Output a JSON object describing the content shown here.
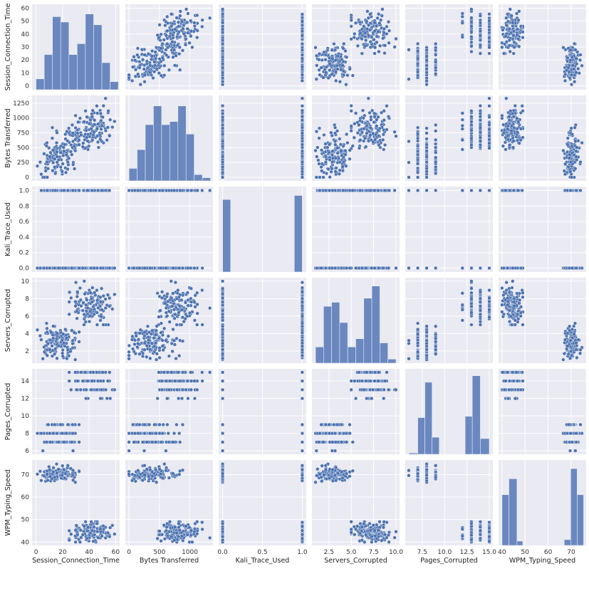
{
  "chart_data": {
    "type": "scatter",
    "subtype": "pairplot",
    "variables": [
      {
        "key": "sct",
        "label": "Session_Connection_Time",
        "lim": [
          -3,
          63
        ],
        "ticks": [
          0,
          20,
          40,
          60
        ],
        "tick_labels": [
          "0",
          "20",
          "40",
          "60"
        ],
        "y_ticks": [
          0,
          10,
          20,
          30,
          40,
          50,
          60
        ],
        "y_tick_labels": [
          "0",
          "10",
          "20",
          "30",
          "40",
          "50",
          "60"
        ]
      },
      {
        "key": "bt",
        "label": "Bytes Transferred",
        "lim": [
          -60,
          1380
        ],
        "ticks": [
          0,
          500,
          1000
        ],
        "tick_labels": [
          "0",
          "500",
          "1000"
        ],
        "y_ticks": [
          0,
          250,
          500,
          750,
          1000,
          1250
        ],
        "y_tick_labels": [
          "0",
          "250",
          "500",
          "750",
          "1000",
          "1250"
        ]
      },
      {
        "key": "ktu",
        "label": "Kali_Trace_Used",
        "lim": [
          -0.05,
          1.05
        ],
        "ticks": [
          0,
          0.5,
          1
        ],
        "tick_labels": [
          "0.0",
          "0.5",
          "1.0"
        ],
        "y_ticks": [
          0,
          0.2,
          0.4,
          0.6,
          0.8,
          1.0
        ],
        "y_tick_labels": [
          "0.0",
          "0.2",
          "0.4",
          "0.6",
          "0.8",
          "1.0"
        ]
      },
      {
        "key": "sc",
        "label": "Servers_Corrupted",
        "lim": [
          0.6,
          10.4
        ],
        "ticks": [
          2.5,
          5,
          7.5,
          10
        ],
        "tick_labels": [
          "2.5",
          "5.0",
          "7.5",
          "10.0"
        ],
        "y_ticks": [
          2,
          4,
          6,
          8,
          10
        ],
        "y_tick_labels": [
          "2",
          "4",
          "6",
          "8",
          "10"
        ]
      },
      {
        "key": "pc",
        "label": "Pages_Corrupted",
        "lim": [
          5.6,
          15.4
        ],
        "ticks": [
          7.5,
          10,
          12.5,
          15
        ],
        "tick_labels": [
          "7.5",
          "10.0",
          "12.5",
          "15.0"
        ],
        "y_ticks": [
          6,
          8,
          10,
          12,
          14
        ],
        "y_tick_labels": [
          "6",
          "8",
          "10",
          "12",
          "14"
        ]
      },
      {
        "key": "wpm",
        "label": "WPM_Typing_Speed",
        "lim": [
          38.5,
          76.5
        ],
        "ticks": [
          40,
          50,
          60,
          70
        ],
        "tick_labels": [
          "40",
          "50",
          "60",
          "70"
        ],
        "y_ticks": [
          40,
          50,
          60,
          70
        ],
        "y_tick_labels": [
          "40",
          "50",
          "60",
          "70"
        ]
      }
    ],
    "clusters": [
      {
        "share": 0.5,
        "center": {
          "sct": 42,
          "bt": 820,
          "ktu": 0.5,
          "sc": 7.3,
          "pc": 13.9,
          "wpm": 44.5
        },
        "spread": {
          "sct": 8,
          "bt": 170,
          "ktu": 0.5,
          "sc": 1.1,
          "pc": 0.9,
          "wpm": 2.2
        },
        "range": {
          "sct": [
            25,
            60
          ],
          "bt": [
            350,
            1330
          ],
          "ktu": [
            0,
            1
          ],
          "sc": [
            5,
            10
          ],
          "pc": [
            12,
            15
          ],
          "wpm": [
            40,
            49
          ]
        }
      },
      {
        "share": 0.5,
        "center": {
          "sct": 17,
          "bt": 350,
          "ktu": 0.5,
          "sc": 3.0,
          "pc": 7.9,
          "wpm": 70.5
        },
        "spread": {
          "sct": 7,
          "bt": 180,
          "ktu": 0.5,
          "sc": 1.0,
          "pc": 0.8,
          "wpm": 1.6
        },
        "range": {
          "sct": [
            1,
            35
          ],
          "bt": [
            0,
            950
          ],
          "ktu": [
            0,
            1
          ],
          "sc": [
            1,
            5.3
          ],
          "pc": [
            6,
            9
          ],
          "wpm": [
            66,
            75
          ]
        }
      }
    ],
    "n_points": 260,
    "histograms": {
      "sct": {
        "bins": [
          [
            0,
            6.2,
            4
          ],
          [
            6.2,
            12.4,
            13
          ],
          [
            12.4,
            18.6,
            27
          ],
          [
            18.6,
            24.8,
            25
          ],
          [
            24.8,
            31,
            13
          ],
          [
            31,
            37.2,
            17
          ],
          [
            37.2,
            43.4,
            28
          ],
          [
            43.4,
            49.6,
            24
          ],
          [
            49.6,
            55.8,
            10
          ],
          [
            55.8,
            62,
            3
          ]
        ],
        "max": 30
      },
      "bt": {
        "bins": [
          [
            0,
            134,
            4
          ],
          [
            134,
            268,
            10
          ],
          [
            268,
            402,
            18
          ],
          [
            402,
            536,
            24
          ],
          [
            536,
            670,
            18
          ],
          [
            670,
            804,
            19
          ],
          [
            804,
            938,
            24
          ],
          [
            938,
            1072,
            15
          ],
          [
            1072,
            1206,
            2
          ],
          [
            1206,
            1340,
            1
          ]
        ],
        "max": 26
      },
      "ktu": {
        "bins": [
          [
            0,
            0.1,
            125
          ],
          [
            0.1,
            0.9,
            0
          ],
          [
            0.9,
            1.0,
            132
          ]
        ],
        "max": 140
      },
      "sc": {
        "bins": [
          [
            1,
            1.9,
            4
          ],
          [
            1.9,
            2.8,
            14
          ],
          [
            2.8,
            3.7,
            15
          ],
          [
            3.7,
            4.6,
            10
          ],
          [
            4.6,
            5.5,
            4
          ],
          [
            5.5,
            6.4,
            6
          ],
          [
            6.4,
            7.3,
            16
          ],
          [
            7.3,
            8.2,
            19
          ],
          [
            8.2,
            9.1,
            5
          ],
          [
            9.1,
            10,
            1
          ]
        ],
        "max": 20
      },
      "pc": {
        "bins": [
          [
            6,
            7,
            1
          ],
          [
            7,
            7.8,
            28
          ],
          [
            7.8,
            8.6,
            55
          ],
          [
            8.6,
            9.4,
            13
          ],
          [
            12.3,
            13.1,
            29
          ],
          [
            13.1,
            14,
            60
          ],
          [
            14,
            15,
            12
          ]
        ],
        "max": 62
      },
      "wpm": {
        "bins": [
          [
            40,
            43,
            35
          ],
          [
            43,
            46.5,
            46
          ],
          [
            46.5,
            49,
            3
          ],
          [
            67,
            69.8,
            4
          ],
          [
            69.8,
            72.6,
            53
          ],
          [
            72.6,
            75.4,
            35
          ]
        ],
        "max": 56
      }
    }
  }
}
